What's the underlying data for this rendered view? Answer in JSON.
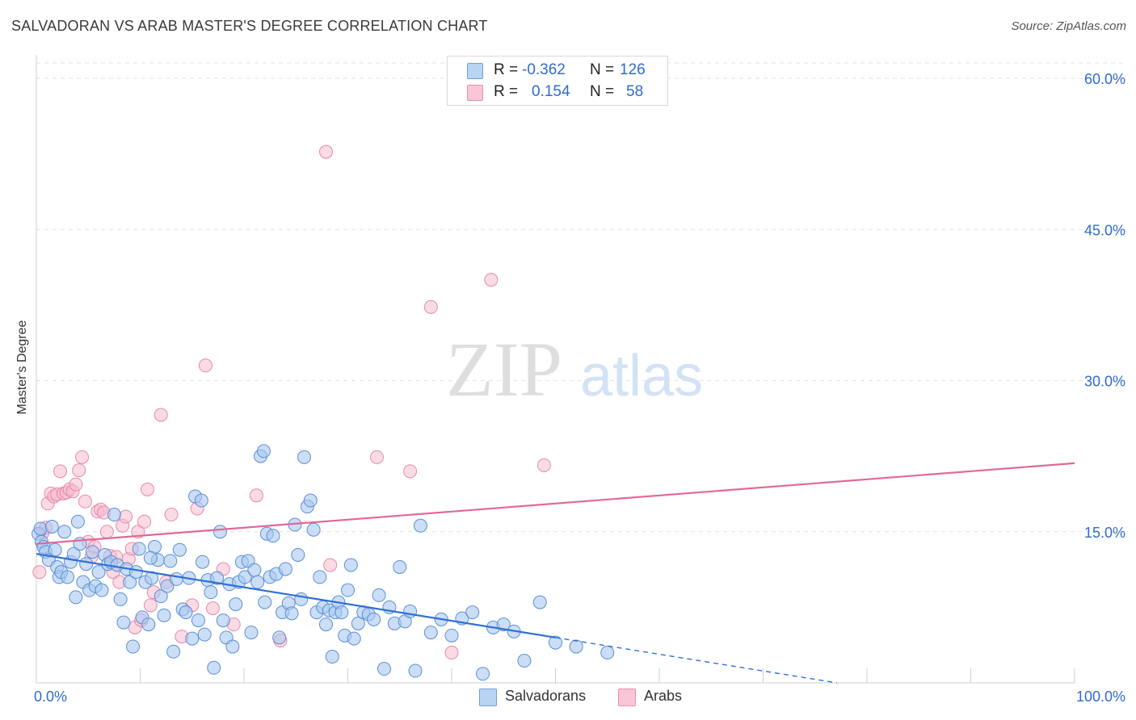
{
  "title": "SALVADORAN VS ARAB MASTER'S DEGREE CORRELATION CHART",
  "source": "Source: ZipAtlas.com",
  "watermark": {
    "zip": "ZIP",
    "atlas": "atlas"
  },
  "legend": {
    "salvadoran": {
      "r_label": "R =",
      "r_value": "-0.362",
      "n_label": "N =",
      "n_value": "126"
    },
    "arab": {
      "r_label": "R =",
      "r_value": "0.154",
      "n_label": "N =",
      "n_value": "58"
    }
  },
  "colors": {
    "salvadoran_fill": "#a9c8ee",
    "salvadoran_stroke": "#5b8fd6",
    "salvadoran_line": "#2e6fd6",
    "arab_fill": "#f6bccf",
    "arab_stroke": "#e58aab",
    "arab_line": "#e26898",
    "grid": "#e2e2e2",
    "axis_text": "#2f6bd0"
  },
  "chart_data": {
    "type": "scatter",
    "title": "SALVADORAN VS ARAB MASTER'S DEGREE CORRELATION CHART",
    "xlabel": "",
    "ylabel": "Master's Degree",
    "xlim": [
      0,
      100
    ],
    "ylim": [
      0,
      60
    ],
    "x_tick_labels": [
      "0.0%",
      "100.0%"
    ],
    "y_ticks": [
      15,
      30,
      45,
      60
    ],
    "y_tick_labels": [
      "15.0%",
      "30.0%",
      "45.0%",
      "60.0%"
    ],
    "grid": true,
    "legend_position": "bottom-center",
    "series": [
      {
        "name": "Salvadorans",
        "r": -0.362,
        "n": 126,
        "trend": {
          "x0": 0,
          "y0": 12.8,
          "x1": 50,
          "y1": 4.5,
          "dashed_to_x": 100,
          "dashed_to_y": -3.8
        },
        "points": [
          [
            0.2,
            14.8
          ],
          [
            0.4,
            15.3
          ],
          [
            0.5,
            14.0
          ],
          [
            0.7,
            13.5
          ],
          [
            0.9,
            13.0
          ],
          [
            1.2,
            12.2
          ],
          [
            1.5,
            15.5
          ],
          [
            1.8,
            13.2
          ],
          [
            2.0,
            11.5
          ],
          [
            2.2,
            10.5
          ],
          [
            2.4,
            11.0
          ],
          [
            2.7,
            15.0
          ],
          [
            3.0,
            10.5
          ],
          [
            3.3,
            12.0
          ],
          [
            3.6,
            12.8
          ],
          [
            3.8,
            8.5
          ],
          [
            4.0,
            16.0
          ],
          [
            4.2,
            13.8
          ],
          [
            4.5,
            10.0
          ],
          [
            4.8,
            11.8
          ],
          [
            5.1,
            9.2
          ],
          [
            5.4,
            13.0
          ],
          [
            5.7,
            9.6
          ],
          [
            6.0,
            11.0
          ],
          [
            6.3,
            9.2
          ],
          [
            6.6,
            12.7
          ],
          [
            6.9,
            11.8
          ],
          [
            7.2,
            12.0
          ],
          [
            7.5,
            16.7
          ],
          [
            7.8,
            11.7
          ],
          [
            8.1,
            8.3
          ],
          [
            8.4,
            6.0
          ],
          [
            8.7,
            11.3
          ],
          [
            9.0,
            10.0
          ],
          [
            9.3,
            3.6
          ],
          [
            9.6,
            11.0
          ],
          [
            9.9,
            13.3
          ],
          [
            10.2,
            6.5
          ],
          [
            10.5,
            10.0
          ],
          [
            10.8,
            5.8
          ],
          [
            11.1,
            10.4
          ],
          [
            11.4,
            13.5
          ],
          [
            11.7,
            12.2
          ],
          [
            12.0,
            8.6
          ],
          [
            12.3,
            6.7
          ],
          [
            12.6,
            9.6
          ],
          [
            12.9,
            12.1
          ],
          [
            13.2,
            3.1
          ],
          [
            13.5,
            10.3
          ],
          [
            13.8,
            13.2
          ],
          [
            14.1,
            7.3
          ],
          [
            14.4,
            7.0
          ],
          [
            14.7,
            10.4
          ],
          [
            15.0,
            4.4
          ],
          [
            15.3,
            18.5
          ],
          [
            15.6,
            6.2
          ],
          [
            15.9,
            18.1
          ],
          [
            16.2,
            4.8
          ],
          [
            16.5,
            10.2
          ],
          [
            16.8,
            9.0
          ],
          [
            17.1,
            1.5
          ],
          [
            17.4,
            10.4
          ],
          [
            17.7,
            15.0
          ],
          [
            18.0,
            6.2
          ],
          [
            18.3,
            4.5
          ],
          [
            18.6,
            9.8
          ],
          [
            18.9,
            3.6
          ],
          [
            19.2,
            7.8
          ],
          [
            19.5,
            10.0
          ],
          [
            19.8,
            12.0
          ],
          [
            20.1,
            10.5
          ],
          [
            20.4,
            12.1
          ],
          [
            20.7,
            5.0
          ],
          [
            21.0,
            11.2
          ],
          [
            21.3,
            10.0
          ],
          [
            21.6,
            22.5
          ],
          [
            21.9,
            23.0
          ],
          [
            22.2,
            14.8
          ],
          [
            22.5,
            10.5
          ],
          [
            22.8,
            14.6
          ],
          [
            23.1,
            10.8
          ],
          [
            23.4,
            4.5
          ],
          [
            23.7,
            7.0
          ],
          [
            24.0,
            11.3
          ],
          [
            24.3,
            7.9
          ],
          [
            24.6,
            6.9
          ],
          [
            24.9,
            15.7
          ],
          [
            25.2,
            12.7
          ],
          [
            25.5,
            8.3
          ],
          [
            25.8,
            22.4
          ],
          [
            26.1,
            17.5
          ],
          [
            26.4,
            18.1
          ],
          [
            26.7,
            15.2
          ],
          [
            27.0,
            7.0
          ],
          [
            27.3,
            10.5
          ],
          [
            27.6,
            7.5
          ],
          [
            27.9,
            5.8
          ],
          [
            28.2,
            7.2
          ],
          [
            28.5,
            2.6
          ],
          [
            28.8,
            7.0
          ],
          [
            29.1,
            8.0
          ],
          [
            29.4,
            7.0
          ],
          [
            29.7,
            4.7
          ],
          [
            30.0,
            9.2
          ],
          [
            30.3,
            11.7
          ],
          [
            30.6,
            4.4
          ],
          [
            31.0,
            5.9
          ],
          [
            31.5,
            7.0
          ],
          [
            32.0,
            6.8
          ],
          [
            32.5,
            6.3
          ],
          [
            33.0,
            8.7
          ],
          [
            33.5,
            1.4
          ],
          [
            34.0,
            7.5
          ],
          [
            34.5,
            5.9
          ],
          [
            35.0,
            11.5
          ],
          [
            35.5,
            6.1
          ],
          [
            36.0,
            7.1
          ],
          [
            36.5,
            1.2
          ],
          [
            37.0,
            15.6
          ],
          [
            38.0,
            5.0
          ],
          [
            39.0,
            6.3
          ],
          [
            40.0,
            4.7
          ],
          [
            41.0,
            6.4
          ],
          [
            42.0,
            7.0
          ],
          [
            43.0,
            0.9
          ],
          [
            44.0,
            5.5
          ],
          [
            45.0,
            5.8
          ],
          [
            46.0,
            5.1
          ],
          [
            47.0,
            2.2
          ],
          [
            48.5,
            8.0
          ],
          [
            50.0,
            4.0
          ],
          [
            52.0,
            3.6
          ],
          [
            55.0,
            3.0
          ],
          [
            22.0,
            8.0
          ],
          [
            16.0,
            12.0
          ],
          [
            11.0,
            12.4
          ]
        ]
      },
      {
        "name": "Arabs",
        "r": 0.154,
        "n": 58,
        "trend": {
          "x0": 0,
          "y0": 13.8,
          "x1": 100,
          "y1": 21.8
        },
        "points": [
          [
            0.3,
            11.0
          ],
          [
            0.6,
            14.9
          ],
          [
            0.9,
            15.4
          ],
          [
            1.1,
            17.8
          ],
          [
            1.4,
            18.8
          ],
          [
            1.7,
            18.5
          ],
          [
            2.0,
            18.7
          ],
          [
            2.3,
            21.0
          ],
          [
            2.6,
            18.8
          ],
          [
            2.9,
            18.9
          ],
          [
            3.2,
            19.2
          ],
          [
            3.5,
            19.0
          ],
          [
            3.8,
            19.7
          ],
          [
            4.1,
            21.1
          ],
          [
            4.4,
            22.4
          ],
          [
            4.7,
            18.0
          ],
          [
            5.0,
            14.0
          ],
          [
            5.3,
            12.5
          ],
          [
            5.6,
            13.5
          ],
          [
            5.9,
            17.0
          ],
          [
            6.2,
            17.2
          ],
          [
            6.5,
            16.9
          ],
          [
            6.8,
            15.0
          ],
          [
            7.1,
            12.6
          ],
          [
            7.4,
            11.0
          ],
          [
            7.7,
            12.5
          ],
          [
            8.0,
            10.0
          ],
          [
            8.3,
            15.6
          ],
          [
            8.6,
            16.5
          ],
          [
            8.9,
            12.3
          ],
          [
            9.2,
            13.3
          ],
          [
            9.5,
            5.5
          ],
          [
            9.8,
            15.0
          ],
          [
            10.1,
            6.2
          ],
          [
            10.4,
            16.0
          ],
          [
            10.7,
            19.2
          ],
          [
            11.0,
            7.7
          ],
          [
            11.3,
            9.0
          ],
          [
            12.0,
            26.6
          ],
          [
            12.5,
            10.0
          ],
          [
            13.0,
            16.7
          ],
          [
            14.0,
            4.6
          ],
          [
            15.0,
            7.7
          ],
          [
            15.5,
            17.3
          ],
          [
            16.3,
            31.5
          ],
          [
            17.0,
            7.4
          ],
          [
            18.0,
            11.3
          ],
          [
            19.0,
            5.8
          ],
          [
            21.2,
            18.6
          ],
          [
            23.5,
            4.2
          ],
          [
            27.9,
            52.7
          ],
          [
            28.3,
            11.7
          ],
          [
            32.8,
            22.4
          ],
          [
            36.0,
            21.0
          ],
          [
            38.0,
            37.3
          ],
          [
            40.0,
            3.0
          ],
          [
            43.8,
            40.0
          ],
          [
            48.9,
            21.6
          ]
        ]
      }
    ]
  },
  "bottom_legend": {
    "salvadorans": "Salvadorans",
    "arabs": "Arabs"
  }
}
